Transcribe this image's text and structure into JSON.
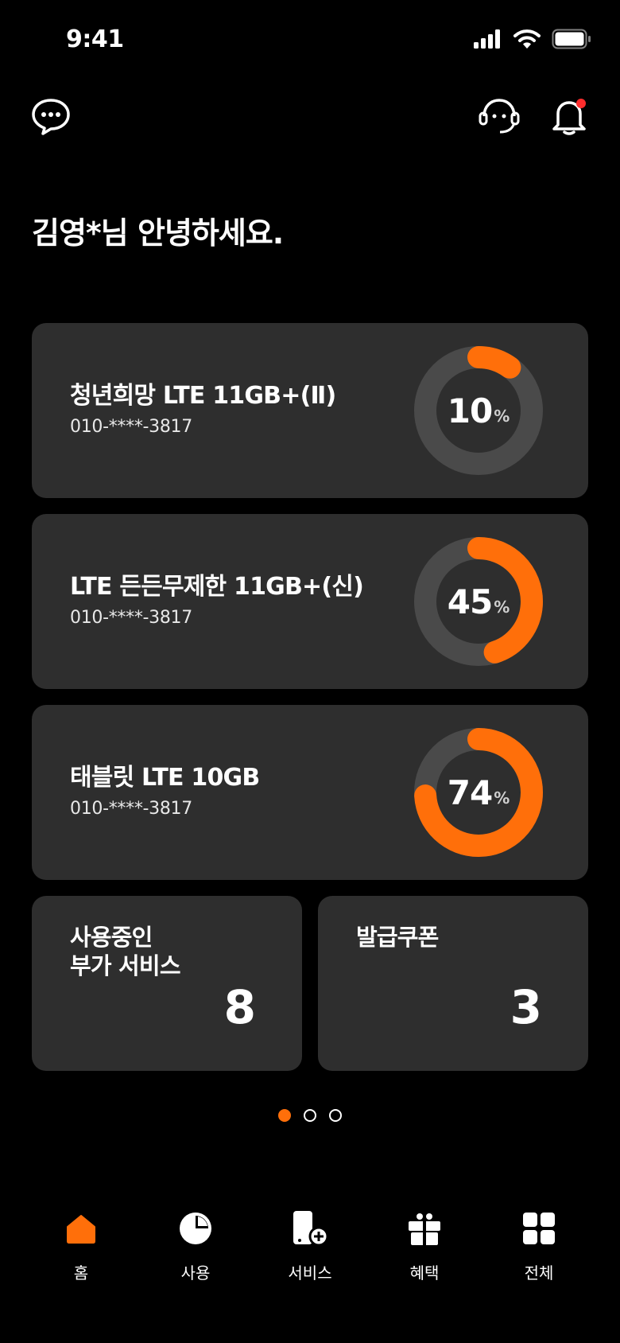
{
  "status_bar": {
    "time": "9:41"
  },
  "header": {
    "left_icon": "chat-bubble-icon",
    "right_icons": [
      "headset-icon",
      "bell-icon"
    ]
  },
  "greeting": "김영*님 안녕하세요.",
  "plans": [
    {
      "name": "청년희망 LTE 11GB+(Ⅱ)",
      "phone": "010-****-3817",
      "usage_percent": 10,
      "usage_label": "10",
      "unit": "%"
    },
    {
      "name": "LTE 든든무제한 11GB+(신)",
      "phone": "010-****-3817",
      "usage_percent": 45,
      "usage_label": "45",
      "unit": "%"
    },
    {
      "name": "태블릿 LTE 10GB",
      "phone": "010-****-3817",
      "usage_percent": 74,
      "usage_label": "74",
      "unit": "%"
    }
  ],
  "summary": {
    "addons": {
      "title": "사용중인\n부가 서비스",
      "count": "8"
    },
    "coupons": {
      "title": "발급쿠폰",
      "count": "3"
    }
  },
  "pager": {
    "total": 3,
    "active": 0
  },
  "tabs": [
    {
      "label": "홈",
      "icon": "home-icon",
      "active": true
    },
    {
      "label": "사용",
      "icon": "pie-chart-icon",
      "active": false
    },
    {
      "label": "서비스",
      "icon": "phone-plus-icon",
      "active": false
    },
    {
      "label": "혜택",
      "icon": "gift-icon",
      "active": false
    },
    {
      "label": "전체",
      "icon": "grid-icon",
      "active": false
    }
  ],
  "colors": {
    "accent": "#ff6f0a",
    "card": "#2e2e2e",
    "track": "#4a4a4a",
    "alert": "#ff2d2d"
  }
}
